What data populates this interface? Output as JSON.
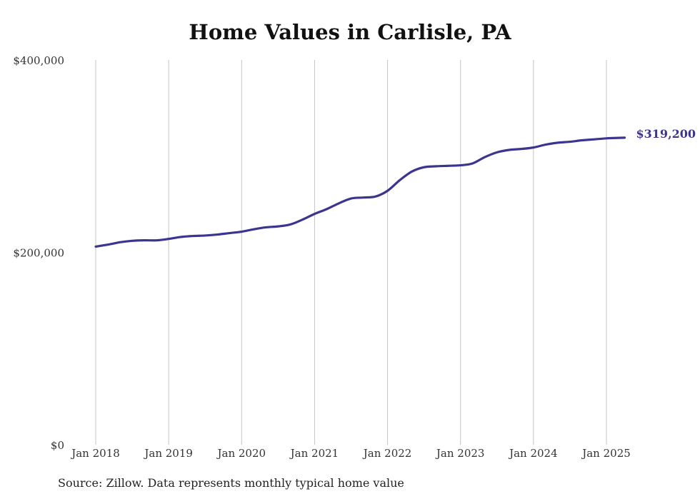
{
  "chart_data": {
    "type": "line",
    "title": "Home Values in Carlisle, PA",
    "xlabel": "",
    "ylabel": "",
    "ylim": [
      0,
      400000
    ],
    "yticks": [
      {
        "value": 0,
        "label": "$0"
      },
      {
        "value": 200000,
        "label": "$200,000"
      },
      {
        "value": 400000,
        "label": "$400,000"
      }
    ],
    "xticks": [
      {
        "value": 2018.0,
        "label": "Jan 2018"
      },
      {
        "value": 2019.0,
        "label": "Jan 2019"
      },
      {
        "value": 2020.0,
        "label": "Jan 2020"
      },
      {
        "value": 2021.0,
        "label": "Jan 2021"
      },
      {
        "value": 2022.0,
        "label": "Jan 2022"
      },
      {
        "value": 2023.0,
        "label": "Jan 2023"
      },
      {
        "value": 2024.0,
        "label": "Jan 2024"
      },
      {
        "value": 2025.0,
        "label": "Jan 2025"
      }
    ],
    "xlim": [
      2018.0,
      2025.25
    ],
    "grid": "vertical",
    "series": [
      {
        "color": "#3b3590",
        "end_label": "$319,200",
        "points": [
          [
            2018.0,
            206000
          ],
          [
            2018.1667,
            208000
          ],
          [
            2018.3333,
            210500
          ],
          [
            2018.5,
            212000
          ],
          [
            2018.6667,
            212500
          ],
          [
            2018.8333,
            212500
          ],
          [
            2019.0,
            214000
          ],
          [
            2019.1667,
            216000
          ],
          [
            2019.3333,
            217000
          ],
          [
            2019.5,
            217500
          ],
          [
            2019.6667,
            218500
          ],
          [
            2019.8333,
            220000
          ],
          [
            2020.0,
            221500
          ],
          [
            2020.1667,
            224000
          ],
          [
            2020.3333,
            226000
          ],
          [
            2020.5,
            227000
          ],
          [
            2020.6667,
            229000
          ],
          [
            2020.8333,
            234000
          ],
          [
            2021.0,
            240000
          ],
          [
            2021.1667,
            245000
          ],
          [
            2021.3333,
            251000
          ],
          [
            2021.5,
            256000
          ],
          [
            2021.6667,
            257000
          ],
          [
            2021.8333,
            258000
          ],
          [
            2022.0,
            264000
          ],
          [
            2022.1667,
            275000
          ],
          [
            2022.3333,
            284000
          ],
          [
            2022.5,
            288500
          ],
          [
            2022.6667,
            289500
          ],
          [
            2022.8333,
            290000
          ],
          [
            2023.0,
            290500
          ],
          [
            2023.1667,
            292500
          ],
          [
            2023.3333,
            299000
          ],
          [
            2023.5,
            304000
          ],
          [
            2023.6667,
            306500
          ],
          [
            2023.8333,
            307500
          ],
          [
            2024.0,
            309000
          ],
          [
            2024.1667,
            312000
          ],
          [
            2024.3333,
            314000
          ],
          [
            2024.5,
            315000
          ],
          [
            2024.6667,
            316500
          ],
          [
            2024.8333,
            317500
          ],
          [
            2025.0,
            318500
          ],
          [
            2025.1667,
            319000
          ],
          [
            2025.25,
            319200
          ]
        ]
      }
    ]
  },
  "footer": {
    "source": "Source: Zillow. Data represents monthly typical home value"
  }
}
